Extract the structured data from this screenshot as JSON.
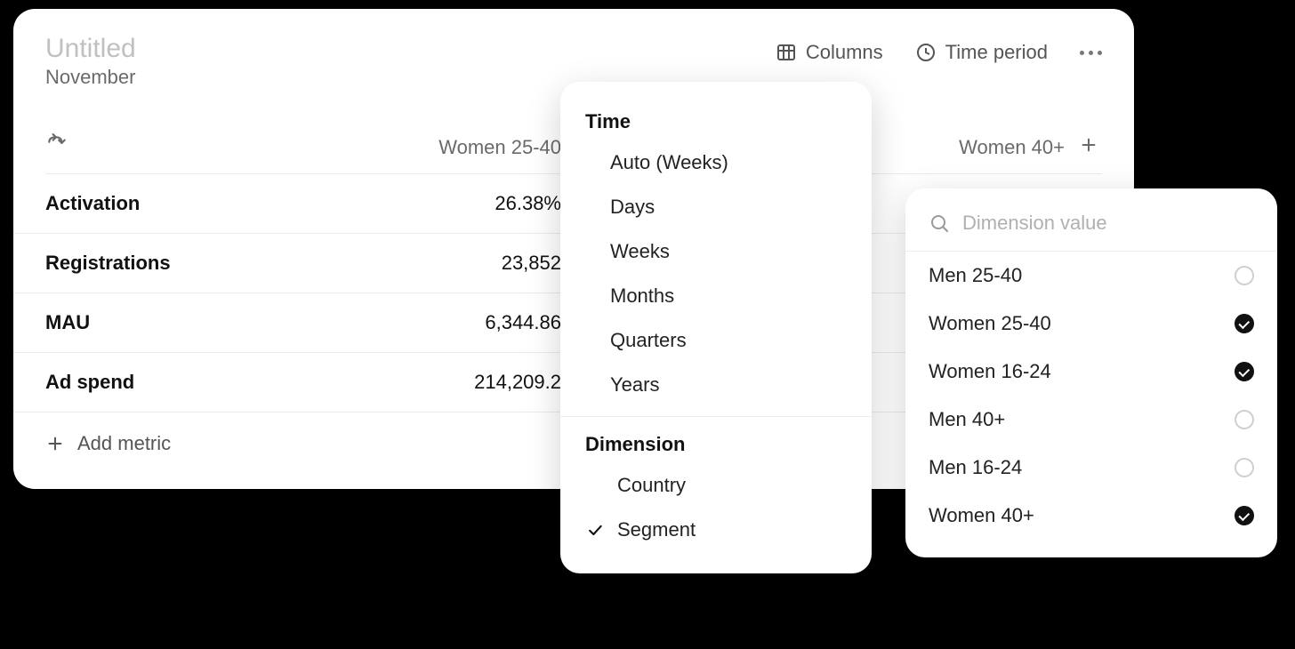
{
  "card": {
    "title": "Untitled",
    "subtitle": "November",
    "toolbar": {
      "columns_label": "Columns",
      "time_period_label": "Time period"
    },
    "columns": {
      "col2": "Women 25-40",
      "last": "Women 40+"
    },
    "rows": [
      {
        "metric": "Activation",
        "value": "26.38%"
      },
      {
        "metric": "Registrations",
        "value": "23,852"
      },
      {
        "metric": "MAU",
        "value": "6,344.86"
      },
      {
        "metric": "Ad spend",
        "value": "214,209.2"
      }
    ],
    "add_metric_label": "Add metric"
  },
  "columns_popover": {
    "section_time": "Time",
    "time_items": [
      {
        "label": "Auto (Weeks)"
      },
      {
        "label": "Days"
      },
      {
        "label": "Weeks"
      },
      {
        "label": "Months"
      },
      {
        "label": "Quarters"
      },
      {
        "label": "Years"
      }
    ],
    "section_dimension": "Dimension",
    "dimension_items": [
      {
        "label": "Country",
        "checked": false
      },
      {
        "label": "Segment",
        "checked": true
      }
    ]
  },
  "dimension_popover": {
    "search_placeholder": "Dimension value",
    "items": [
      {
        "label": "Men 25-40",
        "checked": false
      },
      {
        "label": "Women 25-40",
        "checked": true
      },
      {
        "label": "Women 16-24",
        "checked": true
      },
      {
        "label": "Men 40+",
        "checked": false
      },
      {
        "label": "Men 16-24",
        "checked": false
      },
      {
        "label": "Women 40+",
        "checked": true
      }
    ]
  },
  "colors": {
    "page_bg": "#000000",
    "card_bg": "#ffffff",
    "title_muted": "#c0c0c0",
    "text_muted": "#6a6a6a",
    "text": "#111111",
    "border": "#eaeaea",
    "radio_border": "#cfcfcf"
  }
}
